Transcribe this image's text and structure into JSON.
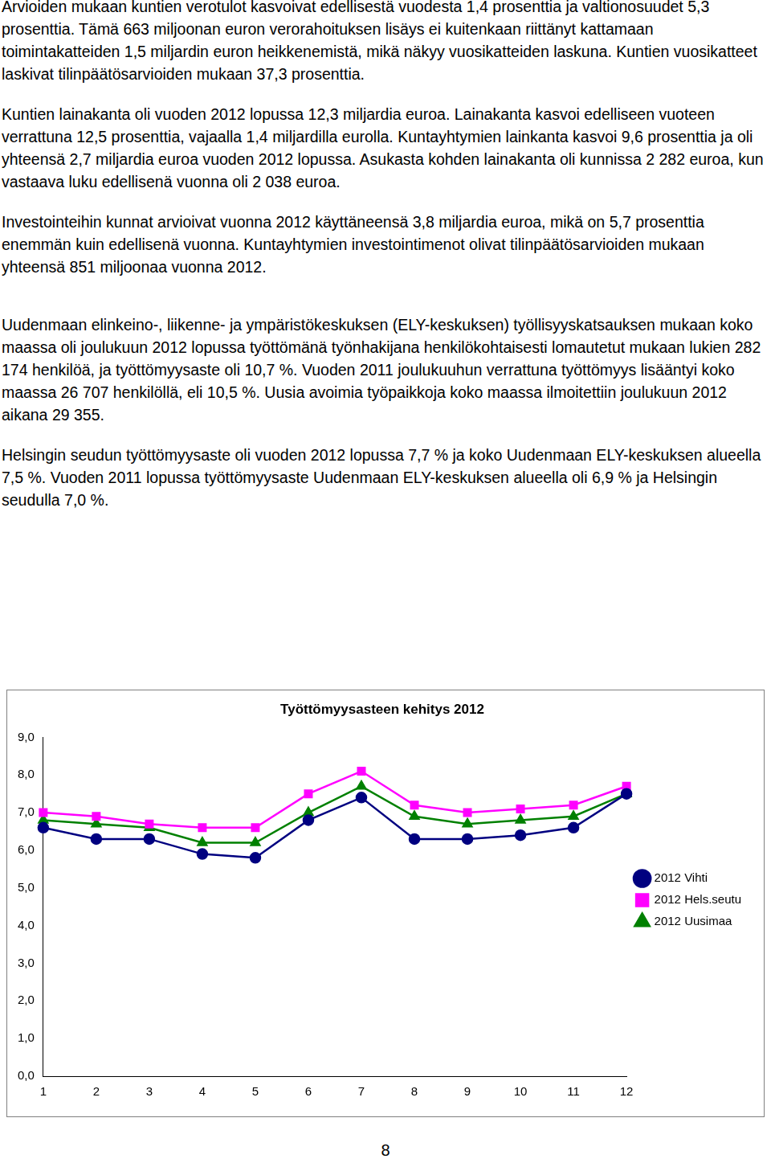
{
  "paragraphs": [
    "Arvioiden mukaan kuntien verotulot kasvoivat edellisestä vuodesta 1,4 prosenttia ja valtionosuudet 5,3 prosenttia. Tämä 663 miljoonan euron verorahoituksen lisäys ei kuitenkaan riittänyt kattamaan toimintakatteiden 1,5 miljardin euron heikkenemistä, mikä näkyy vuosikatteiden laskuna. Kuntien vuosikatteet laskivat tilinpäätösarvioiden mukaan 37,3 prosenttia.",
    "Kuntien lainakanta oli vuoden 2012 lopussa 12,3 miljardia euroa. Lainakanta kasvoi edelliseen vuoteen verrattuna 12,5 prosenttia, vajaalla 1,4 miljardilla eurolla. Kuntayhtymien lainkanta kasvoi 9,6 prosenttia ja oli yhteensä 2,7 miljardia euroa vuoden 2012 lopussa. Asukasta kohden lainakanta oli kunnissa 2 282 euroa, kun vastaava luku edellisenä vuonna oli 2 038 euroa.",
    "Investointeihin kunnat arvioivat vuonna 2012 käyttäneensä 3,8 miljardia euroa, mikä on 5,7 prosenttia enemmän kuin edellisenä vuonna. Kuntayhtymien investointimenot olivat tilinpäätösarvioiden mukaan yhteensä 851 miljoonaa vuonna 2012.",
    "Uudenmaan elinkeino-, liikenne- ja ympäristökeskuksen (ELY-keskuksen) työllisyyskatsauksen mukaan koko maassa oli joulukuun 2012 lopussa työttömänä työnhakijana henkilökohtaisesti lomautetut mukaan lukien 282 174 henkilöä, ja työttömyysaste oli 10,7 %. Vuoden 2011 joulukuuhun verrattuna työttömyys lisääntyi koko maassa 26 707 henkilöllä, eli 10,5 %. Uusia avoimia työpaikkoja koko maassa ilmoitettiin joulukuun 2012 aikana 29 355.",
    "Helsingin seudun työttömyysaste oli vuoden 2012 lopussa 7,7 % ja koko Uudenmaan ELY-keskuksen alueella 7,5 %.  Vuoden 2011 lopussa työttömyysaste Uudenmaan ELY-keskuksen alueella oli 6,9 % ja Helsingin seudulla 7,0 %."
  ],
  "chart_data": {
    "type": "line",
    "title": "Työttömyysasteen kehitys 2012",
    "categories": [
      1,
      2,
      3,
      4,
      5,
      6,
      7,
      8,
      9,
      10,
      11,
      12
    ],
    "series": [
      {
        "name": "2012 Vihti",
        "color": "#000080",
        "marker": "circle",
        "line_style": "solid",
        "values": [
          6.6,
          6.3,
          6.3,
          5.9,
          5.8,
          6.8,
          7.4,
          6.3,
          6.3,
          6.4,
          6.6,
          7.5
        ]
      },
      {
        "name": "2012 Hels.seutu",
        "color": "#ff00ff",
        "marker": "square",
        "line_style": "solid",
        "values": [
          7.0,
          6.9,
          6.7,
          6.6,
          6.6,
          7.5,
          8.1,
          7.2,
          7.0,
          7.1,
          7.2,
          7.7
        ]
      },
      {
        "name": "2012 Uusimaa",
        "color": "#008000",
        "marker": "triangle",
        "line_style": "solid",
        "values": [
          6.8,
          6.7,
          6.6,
          6.2,
          6.2,
          7.0,
          7.7,
          6.9,
          6.7,
          6.8,
          6.9,
          7.5
        ]
      }
    ],
    "ylim": [
      0,
      9
    ],
    "yticks": [
      {
        "value": 0,
        "label": "0,0"
      },
      {
        "value": 1,
        "label": "1,0"
      },
      {
        "value": 2,
        "label": "2,0"
      },
      {
        "value": 3,
        "label": "3,0"
      },
      {
        "value": 4,
        "label": "4,0"
      },
      {
        "value": 5,
        "label": "5,0"
      },
      {
        "value": 6,
        "label": "6,0"
      },
      {
        "value": 7,
        "label": "7,0"
      },
      {
        "value": 8,
        "label": "8,0"
      },
      {
        "value": 9,
        "label": "9,0"
      }
    ],
    "grid": false,
    "legend": "right"
  },
  "page_number": "8"
}
